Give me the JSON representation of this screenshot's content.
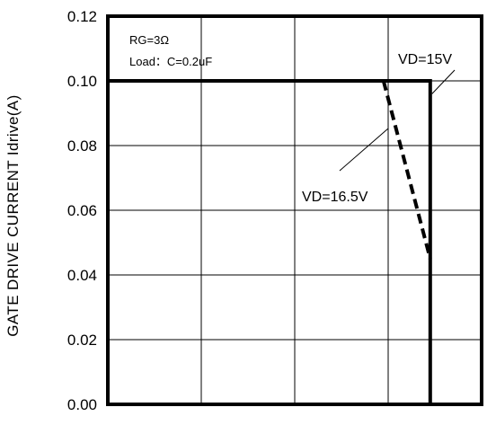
{
  "chart_data": {
    "type": "line",
    "title": "",
    "xlabel": "",
    "ylabel": "GATE  DRIVE  CURRENT  Idrive(A)",
    "ylim": [
      0,
      0.12
    ],
    "y_ticks": [
      "0.00",
      "0.02",
      "0.04",
      "0.06",
      "0.08",
      "0.10",
      "0.12"
    ],
    "x_gridlines": 4,
    "grid": true,
    "conditions": [
      "RG=3Ω",
      "Load：C=0.2uF"
    ],
    "series": [
      {
        "name": "VD=15V",
        "style": "solid",
        "points": [
          [
            0,
            0.1
          ],
          [
            3.45,
            0.1
          ],
          [
            3.45,
            0.0
          ]
        ]
      },
      {
        "name": "VD=16.5V",
        "style": "dashed",
        "points": [
          [
            2.95,
            0.1
          ],
          [
            3.45,
            0.045
          ]
        ]
      }
    ],
    "annotations": [
      {
        "text": "VD=15V",
        "series": "VD=15V"
      },
      {
        "text": "VD=16.5V",
        "series": "VD=16.5V"
      }
    ],
    "colors": {
      "line": "#000000",
      "grid": "#000000",
      "background": "#ffffff"
    }
  }
}
